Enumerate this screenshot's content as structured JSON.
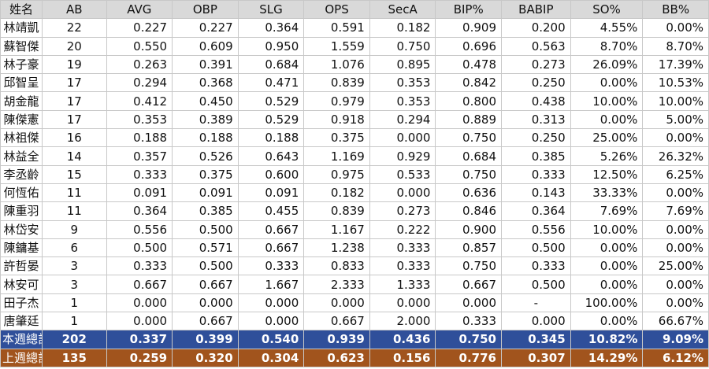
{
  "table": {
    "headers": [
      "姓名",
      "AB",
      "AVG",
      "OBP",
      "SLG",
      "OPS",
      "SecA",
      "BIP%",
      "BABIP",
      "SO%",
      "BB%"
    ],
    "rows": [
      [
        "林靖凱",
        "22",
        "0.227",
        "0.227",
        "0.364",
        "0.591",
        "0.182",
        "0.909",
        "0.200",
        "4.55%",
        "0.00%"
      ],
      [
        "蘇智傑",
        "20",
        "0.550",
        "0.609",
        "0.950",
        "1.559",
        "0.750",
        "0.696",
        "0.563",
        "8.70%",
        "8.70%"
      ],
      [
        "林子豪",
        "19",
        "0.263",
        "0.391",
        "0.684",
        "1.076",
        "0.895",
        "0.478",
        "0.273",
        "26.09%",
        "17.39%"
      ],
      [
        "邱智呈",
        "17",
        "0.294",
        "0.368",
        "0.471",
        "0.839",
        "0.353",
        "0.842",
        "0.250",
        "0.00%",
        "10.53%"
      ],
      [
        "胡金龍",
        "17",
        "0.412",
        "0.450",
        "0.529",
        "0.979",
        "0.353",
        "0.800",
        "0.438",
        "10.00%",
        "10.00%"
      ],
      [
        "陳傑憲",
        "17",
        "0.353",
        "0.389",
        "0.529",
        "0.918",
        "0.294",
        "0.889",
        "0.313",
        "0.00%",
        "5.00%"
      ],
      [
        "林祖傑",
        "16",
        "0.188",
        "0.188",
        "0.188",
        "0.375",
        "0.000",
        "0.750",
        "0.250",
        "25.00%",
        "0.00%"
      ],
      [
        "林益全",
        "14",
        "0.357",
        "0.526",
        "0.643",
        "1.169",
        "0.929",
        "0.684",
        "0.385",
        "5.26%",
        "26.32%"
      ],
      [
        "李丞齡",
        "15",
        "0.333",
        "0.375",
        "0.600",
        "0.975",
        "0.533",
        "0.750",
        "0.333",
        "12.50%",
        "6.25%"
      ],
      [
        "何恆佑",
        "11",
        "0.091",
        "0.091",
        "0.091",
        "0.182",
        "0.000",
        "0.636",
        "0.143",
        "33.33%",
        "0.00%"
      ],
      [
        "陳重羽",
        "11",
        "0.364",
        "0.385",
        "0.455",
        "0.839",
        "0.273",
        "0.846",
        "0.364",
        "7.69%",
        "7.69%"
      ],
      [
        "林岱安",
        "9",
        "0.556",
        "0.500",
        "0.667",
        "1.167",
        "0.222",
        "0.900",
        "0.556",
        "10.00%",
        "0.00%"
      ],
      [
        "陳鏞基",
        "6",
        "0.500",
        "0.571",
        "0.667",
        "1.238",
        "0.333",
        "0.857",
        "0.500",
        "0.00%",
        "0.00%"
      ],
      [
        "許哲晏",
        "3",
        "0.333",
        "0.500",
        "0.333",
        "0.833",
        "0.333",
        "0.750",
        "0.333",
        "0.00%",
        "25.00%"
      ],
      [
        "林安可",
        "3",
        "0.667",
        "0.667",
        "1.667",
        "2.333",
        "1.333",
        "0.667",
        "0.500",
        "0.00%",
        "0.00%"
      ],
      [
        "田子杰",
        "1",
        "0.000",
        "0.000",
        "0.000",
        "0.000",
        "0.000",
        "0.000",
        "-",
        "100.00%",
        "0.00%"
      ],
      [
        "唐肇廷",
        "1",
        "0.000",
        "0.667",
        "0.000",
        "0.667",
        "2.000",
        "0.333",
        "0.000",
        "0.00%",
        "66.67%"
      ]
    ],
    "totals": [
      {
        "cells": [
          "本週總計",
          "202",
          "0.337",
          "0.399",
          "0.540",
          "0.939",
          "0.436",
          "0.750",
          "0.345",
          "10.82%",
          "9.09%"
        ],
        "bg": "#2f4f9a"
      },
      {
        "cells": [
          "上週總計",
          "135",
          "0.259",
          "0.320",
          "0.304",
          "0.623",
          "0.156",
          "0.776",
          "0.307",
          "14.29%",
          "6.12%"
        ],
        "bg": "#a1541d"
      }
    ]
  },
  "colors": {
    "header_bg": "#d9d9d9",
    "this_week_bg": "#2f4f9a",
    "last_week_bg": "#a1541d",
    "grid": "#c8c8c8"
  }
}
